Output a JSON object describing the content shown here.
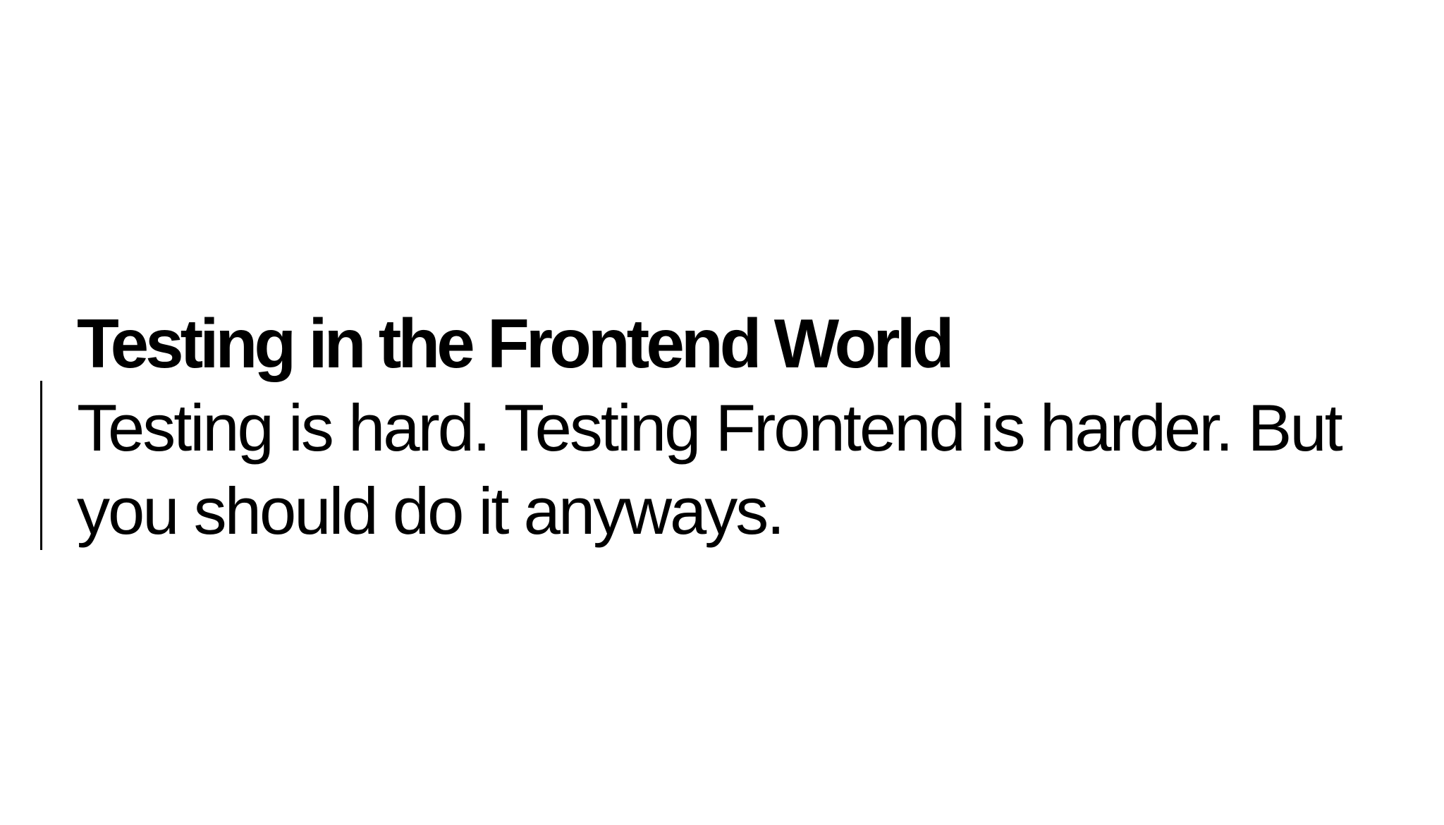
{
  "slide": {
    "title": "Testing in the Frontend World",
    "quote_line_1": "Testing is hard. Testing Frontend is harder. But",
    "quote_line_2": "you should do it anyways."
  }
}
